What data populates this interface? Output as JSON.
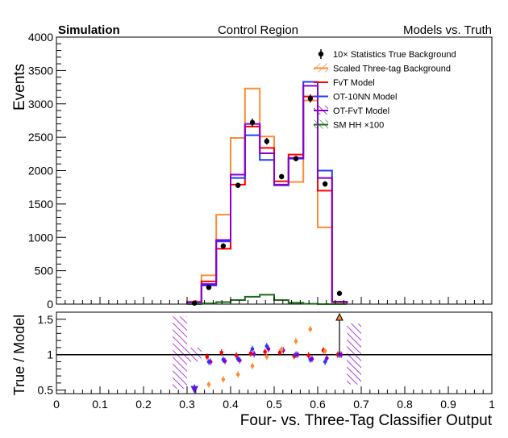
{
  "header": {
    "left": "Simulation",
    "center": "Control Region",
    "right": "Models vs. Truth"
  },
  "chart_data": {
    "type": "histogram",
    "x_edges": [
      0.3,
      0.333,
      0.367,
      0.4,
      0.433,
      0.467,
      0.5,
      0.533,
      0.567,
      0.6,
      0.633,
      0.667
    ],
    "top_panel": {
      "ylabel": "Events",
      "ylim": [
        0,
        4000
      ],
      "yticks": [
        "0",
        "500",
        "1000",
        "1500",
        "2000",
        "2500",
        "3000",
        "3500",
        "4000"
      ],
      "series": [
        {
          "name": "Scaled Three-tag Background",
          "color": "#ff8c33",
          "values": [
            40,
            430,
            1340,
            2490,
            3230,
            2510,
            1790,
            1830,
            3050,
            1150,
            20
          ]
        },
        {
          "name": "FvT Model",
          "color": "#ff0000",
          "values": [
            30,
            340,
            830,
            1790,
            2660,
            2340,
            1840,
            2240,
            3110,
            1700,
            35
          ]
        },
        {
          "name": "OT-10NN Model",
          "color": "#1f3dff",
          "values": [
            25,
            280,
            940,
            1890,
            2530,
            2160,
            1780,
            2180,
            3330,
            2000,
            35
          ]
        },
        {
          "name": "OT-FvT Model",
          "color": "#8b00cc",
          "values": [
            28,
            300,
            960,
            1940,
            2700,
            2260,
            1790,
            2190,
            3270,
            1890,
            35
          ]
        },
        {
          "name": "SM HH ×100",
          "color": "#1a6b1a",
          "values": [
            0,
            10,
            30,
            60,
            110,
            140,
            60,
            20,
            5,
            0,
            0
          ]
        }
      ],
      "points": {
        "name": "10× Statistics True Background",
        "color": "#000000",
        "x": [
          0.317,
          0.35,
          0.383,
          0.417,
          0.45,
          0.483,
          0.517,
          0.55,
          0.583,
          0.617,
          0.65
        ],
        "y": [
          15,
          250,
          870,
          1780,
          2720,
          2440,
          1910,
          2180,
          3080,
          1800,
          160
        ],
        "err": [
          5,
          20,
          40,
          40,
          60,
          50,
          40,
          40,
          60,
          40,
          15
        ]
      }
    },
    "bottom_panel": {
      "ylabel": "True / Model",
      "ylim": [
        0.45,
        1.6
      ],
      "yticks": [
        "0.5",
        "1",
        "1.5"
      ],
      "reference_line": 1,
      "ratio_points": [
        {
          "series": "FvT Model",
          "color": "#ff0000",
          "x": [
            0.346,
            0.379,
            0.413,
            0.446,
            0.479,
            0.513,
            0.546,
            0.579,
            0.613,
            0.646
          ],
          "y": [
            0.97,
            1.03,
            0.99,
            1.02,
            1.04,
            1.03,
            0.98,
            0.99,
            1.06,
            1.0
          ]
        },
        {
          "series": "OT-10NN Model",
          "color": "#1f3dff",
          "x": [
            0.35,
            0.383,
            0.417,
            0.45,
            0.483,
            0.517,
            0.55,
            0.583,
            0.617,
            0.65
          ],
          "y": [
            0.9,
            0.93,
            0.94,
            1.08,
            1.12,
            1.07,
            1.0,
            0.93,
            0.9,
            1.0
          ]
        },
        {
          "series": "OT-FvT Model",
          "color": "#8b00cc",
          "x": [
            0.354,
            0.387,
            0.421,
            0.454,
            0.487,
            0.521,
            0.554,
            0.587,
            0.621,
            0.654
          ],
          "y": [
            0.9,
            0.91,
            0.92,
            1.01,
            1.08,
            1.06,
            1.0,
            0.94,
            0.95,
            1.0
          ]
        },
        {
          "series": "Scaled Three-tag Background",
          "color": "#ff8c33",
          "x": [
            0.35,
            0.383,
            0.417,
            0.45,
            0.483,
            0.517,
            0.55,
            0.583,
            0.617
          ],
          "y": [
            0.58,
            0.65,
            0.72,
            0.84,
            0.97,
            1.07,
            1.19,
            1.36,
            1.05
          ]
        }
      ],
      "error_bands": [
        {
          "x_range": [
            0.267,
            0.3
          ],
          "y_range": [
            0.52,
            1.54
          ]
        },
        {
          "x_range": [
            0.3,
            0.333
          ],
          "y_range": [
            0.9,
            1.1
          ]
        },
        {
          "x_range": [
            0.667,
            0.7
          ],
          "y_range": [
            0.58,
            1.44
          ]
        }
      ],
      "arrows": [
        {
          "x": 0.317,
          "direction": "down"
        },
        {
          "x": 0.65,
          "direction": "up"
        }
      ]
    },
    "xlabel": "Four- vs. Three-Tag Classifier Output",
    "xlim": [
      0,
      1
    ],
    "xticks": [
      "0",
      "0.1",
      "0.2",
      "0.3",
      "0.4",
      "0.5",
      "0.6",
      "0.7",
      "0.8",
      "0.9",
      "1"
    ]
  }
}
